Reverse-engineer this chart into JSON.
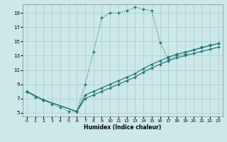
{
  "xlabel": "Humidex (Indice chaleur)",
  "background_color": "#cce8e8",
  "grid_color": "#aacccc",
  "line_color": "#1a7070",
  "xlim": [
    -0.5,
    23.5
  ],
  "ylim": [
    4.5,
    20.2
  ],
  "xticks": [
    0,
    1,
    2,
    3,
    4,
    5,
    6,
    7,
    8,
    9,
    10,
    11,
    12,
    13,
    14,
    15,
    16,
    17,
    18,
    19,
    20,
    21,
    22,
    23
  ],
  "yticks": [
    5,
    7,
    9,
    11,
    13,
    15,
    17,
    19
  ],
  "curve1_x": [
    0,
    1,
    2,
    3,
    4,
    5,
    6,
    7,
    8,
    9,
    10,
    11,
    12,
    13,
    14,
    15,
    16,
    17,
    18,
    19,
    20,
    21,
    22,
    23
  ],
  "curve1_y": [
    8.0,
    7.2,
    6.8,
    6.2,
    5.8,
    5.2,
    5.2,
    9.0,
    13.5,
    18.3,
    19.0,
    19.0,
    19.3,
    19.8,
    19.5,
    19.3,
    14.8,
    12.5,
    13.0,
    13.2,
    13.8,
    14.2,
    14.5,
    14.7
  ],
  "curve2_x": [
    0,
    2,
    6,
    7,
    8,
    9,
    10,
    11,
    12,
    13,
    14,
    15,
    16,
    17,
    18,
    19,
    20,
    21,
    22,
    23
  ],
  "curve2_y": [
    8.0,
    6.8,
    5.2,
    7.5,
    8.0,
    8.5,
    9.0,
    9.5,
    10.0,
    10.5,
    11.2,
    11.8,
    12.3,
    12.8,
    13.2,
    13.5,
    13.8,
    14.1,
    14.4,
    14.7
  ],
  "curve3_x": [
    0,
    2,
    6,
    7,
    8,
    9,
    10,
    11,
    12,
    13,
    14,
    15,
    16,
    17,
    18,
    19,
    20,
    21,
    22,
    23
  ],
  "curve3_y": [
    8.0,
    6.8,
    5.2,
    7.0,
    7.5,
    8.0,
    8.5,
    9.0,
    9.5,
    10.0,
    10.7,
    11.3,
    11.8,
    12.3,
    12.7,
    13.0,
    13.3,
    13.6,
    13.9,
    14.2
  ]
}
